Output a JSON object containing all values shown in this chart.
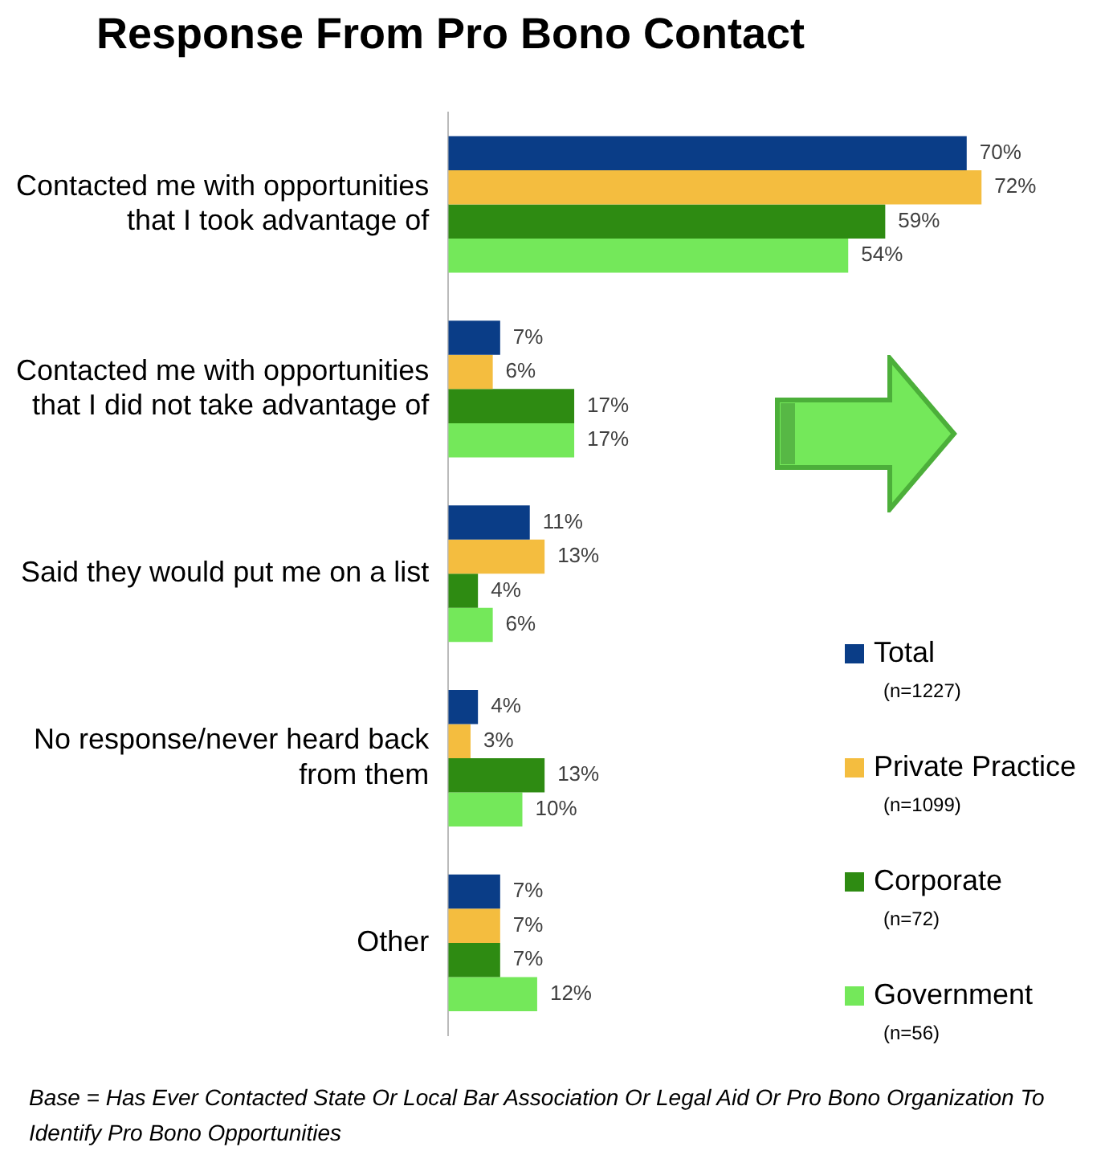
{
  "chart_data": {
    "type": "bar",
    "orientation": "horizontal",
    "title": "Response From Pro Bono Contact",
    "categories": [
      "Contacted me with opportunities that I took advantage of",
      "Contacted me with opportunities that I did not take advantage of",
      "Said they would put me on a list",
      "No response/never heard back from them",
      "Other"
    ],
    "series": [
      {
        "name": "Total (n=1227)",
        "color": "#0a3d87",
        "values": [
          70,
          7,
          11,
          4,
          7
        ],
        "value_labels": [
          "70%",
          "7%",
          "11%",
          "4%",
          "7%"
        ]
      },
      {
        "name": "Private Practice (n=1099)",
        "color": "#f4bd3f",
        "values": [
          72,
          6,
          13,
          3,
          7
        ],
        "value_labels": [
          "72%",
          "6%",
          "13%",
          "3%",
          "7%"
        ]
      },
      {
        "name": "Corporate (n=72)",
        "color": "#2e8b12",
        "values": [
          59,
          17,
          4,
          13,
          7
        ],
        "value_labels": [
          "59%",
          "17%",
          "4%",
          "13%",
          "7%"
        ]
      },
      {
        "name": "Government (n=56)",
        "color": "#74e85a",
        "values": [
          54,
          17,
          6,
          10,
          12
        ],
        "value_labels": [
          "54%",
          "17%",
          "6%",
          "10%",
          "12%"
        ]
      }
    ],
    "legend": "bottom right",
    "grid": false,
    "tick_labels": "y",
    "annotations": [
      "Base = Has Ever Contacted State Or Local Bar Association Or Legal Aid Or Pro Bono Organization To Identify Pro Bono Opportunities"
    ]
  }
}
